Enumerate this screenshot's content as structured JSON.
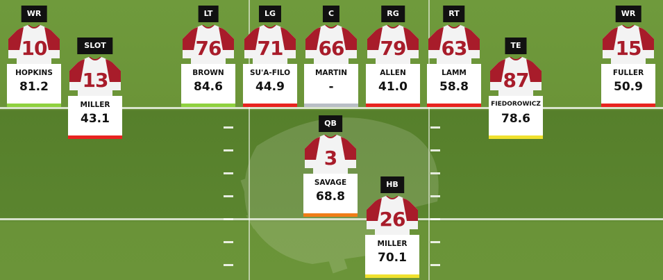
{
  "players": [
    {
      "id": "wr-left",
      "position": "WR",
      "number": "10",
      "name": "HOPKINS",
      "grade": "81.2",
      "grade_color": "#8fd13f"
    },
    {
      "id": "slot",
      "position": "SLOT",
      "number": "13",
      "name": "MILLER",
      "grade": "43.1",
      "grade_color": "#e8231f"
    },
    {
      "id": "lt",
      "position": "LT",
      "number": "76",
      "name": "BROWN",
      "grade": "84.6",
      "grade_color": "#8fd13f"
    },
    {
      "id": "lg",
      "position": "LG",
      "number": "71",
      "name": "SU'A-FILO",
      "grade": "44.9",
      "grade_color": "#e8231f"
    },
    {
      "id": "c",
      "position": "C",
      "number": "66",
      "name": "MARTIN",
      "grade": "-",
      "grade_color": "#b9bec6"
    },
    {
      "id": "rg",
      "position": "RG",
      "number": "79",
      "name": "ALLEN",
      "grade": "41.0",
      "grade_color": "#e8231f"
    },
    {
      "id": "rt",
      "position": "RT",
      "number": "63",
      "name": "LAMM",
      "grade": "58.8",
      "grade_color": "#e8231f"
    },
    {
      "id": "te",
      "position": "TE",
      "number": "87",
      "name": "FIEDOROWICZ",
      "grade": "78.6",
      "grade_color": "#f0e12e"
    },
    {
      "id": "wr-right",
      "position": "WR",
      "number": "15",
      "name": "FULLER",
      "grade": "50.9",
      "grade_color": "#e8231f"
    },
    {
      "id": "qb",
      "position": "QB",
      "number": "3",
      "name": "SAVAGE",
      "grade": "68.8",
      "grade_color": "#f07d17"
    },
    {
      "id": "hb",
      "position": "HB",
      "number": "26",
      "name": "MILLER",
      "grade": "70.1",
      "grade_color": "#f0e12e"
    }
  ],
  "colors": {
    "jersey": "#a81c2a",
    "jersey_body": "#f3f3f3"
  }
}
